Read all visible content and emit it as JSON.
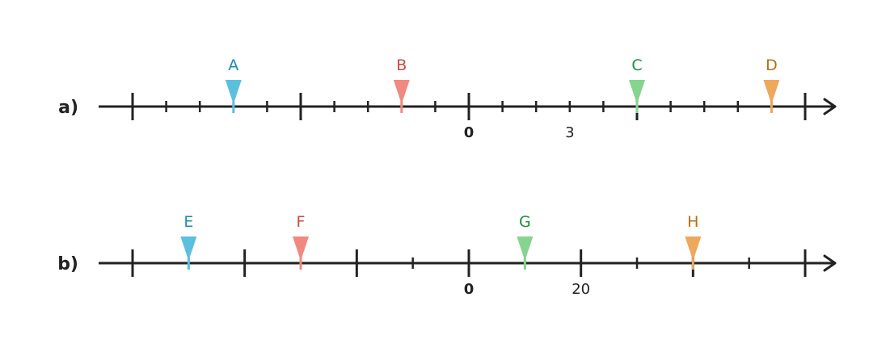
{
  "lines": [
    {
      "label": "a)",
      "min": -10,
      "max": 10,
      "major_step": 5,
      "minor_step": 1,
      "tick_labels": [
        {
          "value": 0,
          "text": "0",
          "bold": true
        },
        {
          "value": 3,
          "text": "3",
          "bold": false
        }
      ],
      "markers": [
        {
          "label": "A",
          "value": -7,
          "color": "#5bc0de",
          "text_color": "#1a8db3"
        },
        {
          "label": "B",
          "value": -2,
          "color": "#f08a80",
          "text_color": "#c94a40"
        },
        {
          "label": "C",
          "value": 5,
          "color": "#85d48f",
          "text_color": "#1f8f3a"
        },
        {
          "label": "D",
          "value": 9,
          "color": "#eda85b",
          "text_color": "#b86e12"
        }
      ]
    },
    {
      "label": "b)",
      "min": -60,
      "max": 60,
      "major_step": 20,
      "minor_step": 10,
      "tick_labels": [
        {
          "value": 0,
          "text": "0",
          "bold": true
        },
        {
          "value": 20,
          "text": "20",
          "bold": false
        }
      ],
      "markers": [
        {
          "label": "E",
          "value": -50,
          "color": "#5bc0de",
          "text_color": "#1a8db3"
        },
        {
          "label": "F",
          "value": -30,
          "color": "#f08a80",
          "text_color": "#c94a40"
        },
        {
          "label": "G",
          "value": 10,
          "color": "#85d48f",
          "text_color": "#1f8f3a"
        },
        {
          "label": "H",
          "value": 40,
          "color": "#eda85b",
          "text_color": "#b86e12"
        }
      ]
    }
  ]
}
